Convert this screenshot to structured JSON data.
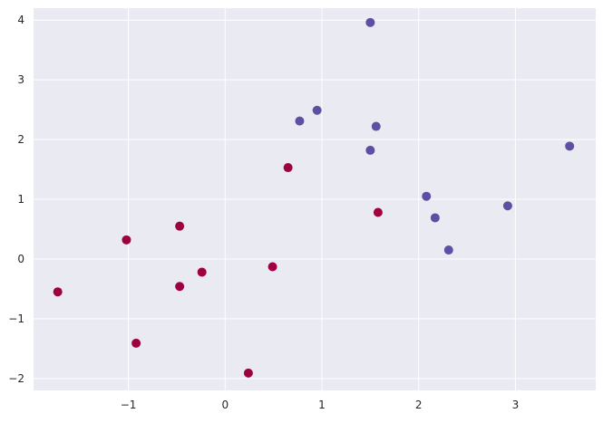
{
  "chart_data": {
    "type": "scatter",
    "title": "",
    "xlabel": "",
    "ylabel": "",
    "xlim": [
      -1.98,
      3.83
    ],
    "ylim": [
      -2.2,
      4.2
    ],
    "grid": true,
    "legend": "none",
    "background": "#eaeaf2",
    "grid_color": "#ffffff",
    "x_ticks": [
      -1,
      0,
      1,
      2,
      3
    ],
    "y_ticks": [
      -2,
      -1,
      0,
      1,
      2,
      3,
      4
    ],
    "x_tick_labels": [
      "−1",
      "0",
      "1",
      "2",
      "3"
    ],
    "y_tick_labels": [
      "−2",
      "−1",
      "0",
      "1",
      "2",
      "3",
      "4"
    ],
    "series": [
      {
        "color": "#9e0142",
        "points": [
          {
            "x": -1.73,
            "y": -0.55
          },
          {
            "x": -1.02,
            "y": 0.32
          },
          {
            "x": -0.92,
            "y": -1.41
          },
          {
            "x": -0.47,
            "y": 0.55
          },
          {
            "x": -0.47,
            "y": -0.46
          },
          {
            "x": -0.24,
            "y": -0.22
          },
          {
            "x": 0.24,
            "y": -1.91
          },
          {
            "x": 0.49,
            "y": -0.13
          },
          {
            "x": 0.65,
            "y": 1.53
          },
          {
            "x": 1.58,
            "y": 0.78
          }
        ]
      },
      {
        "color": "#5e4fa2",
        "points": [
          {
            "x": 0.77,
            "y": 2.31
          },
          {
            "x": 0.95,
            "y": 2.49
          },
          {
            "x": 1.5,
            "y": 3.96
          },
          {
            "x": 1.56,
            "y": 2.22
          },
          {
            "x": 1.5,
            "y": 1.82
          },
          {
            "x": 2.08,
            "y": 1.05
          },
          {
            "x": 2.17,
            "y": 0.69
          },
          {
            "x": 2.31,
            "y": 0.15
          },
          {
            "x": 2.92,
            "y": 0.89
          },
          {
            "x": 3.56,
            "y": 1.89
          }
        ]
      }
    ]
  }
}
